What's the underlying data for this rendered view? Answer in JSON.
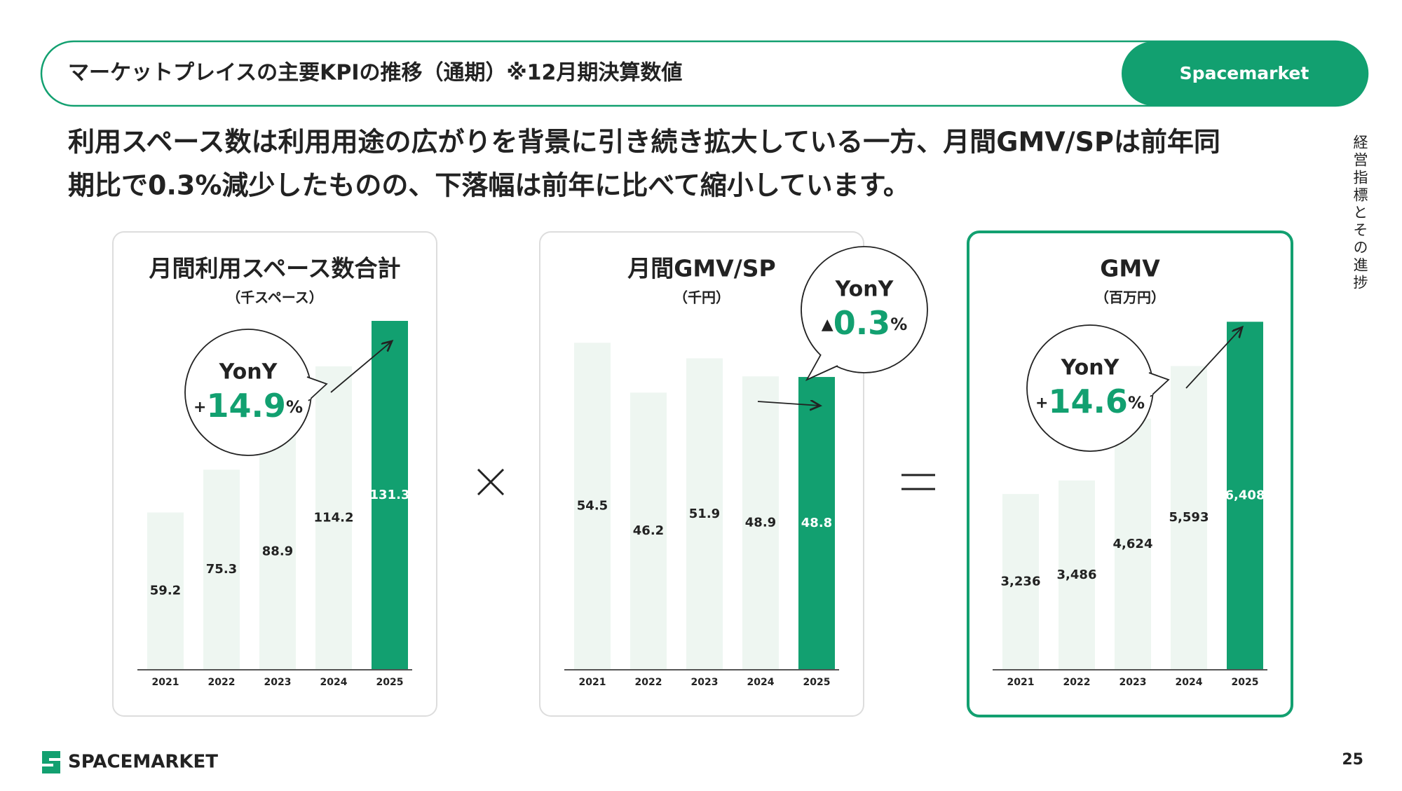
{
  "header": {
    "title": "マーケットプレイスの主要KPIの推移（通期）※12月期決算数値",
    "brand": "Spacemarket"
  },
  "lead": [
    "利用スペース数は利用用途の広がりを背景に引き続き拡大している一方、月間GMV/SPは前年同",
    "期比で0.3%減少したものの、下落幅は前年に比べて縮小しています。"
  ],
  "side_label": "経営指標とその進捗",
  "operators": [
    "×",
    "="
  ],
  "footer": {
    "logo": "SPACEMARKET",
    "page": 25
  },
  "chart_data": [
    {
      "type": "bar",
      "title": "月間利用スペース数合計",
      "unit": "（千スペース）",
      "categories": [
        "2021",
        "2022",
        "2023",
        "2024",
        "2025"
      ],
      "values": [
        59.2,
        75.3,
        88.9,
        114.2,
        131.3
      ],
      "color": "#eef6f1",
      "highlight_color": "#12a070",
      "ylim": [
        0,
        140
      ],
      "yony": {
        "label": "YonY",
        "prefix": "+",
        "value": 14.9,
        "suffix": "%"
      }
    },
    {
      "type": "bar",
      "title": "月間GMV/SP",
      "unit": "（千円）",
      "categories": [
        "2021",
        "2022",
        "2023",
        "2024",
        "2025"
      ],
      "values": [
        54.5,
        46.2,
        51.9,
        48.9,
        48.8
      ],
      "color": "#eef6f1",
      "highlight_color": "#12a070",
      "ylim": [
        0,
        62
      ],
      "yony": {
        "label": "YonY",
        "prefix": "▲",
        "value": 0.3,
        "suffix": "%"
      }
    },
    {
      "type": "bar",
      "title": "GMV",
      "unit": "（百万円）",
      "categories": [
        "2021",
        "2022",
        "2023",
        "2024",
        "2025"
      ],
      "values": [
        3236,
        3486,
        4624,
        5593,
        6408
      ],
      "value_labels": [
        "3,236",
        "3,486",
        "4,624",
        "5,593",
        "6,408"
      ],
      "color": "#eef6f1",
      "highlight_color": "#12a070",
      "ylim": [
        0,
        6850
      ],
      "yony": {
        "label": "YonY",
        "prefix": "+",
        "value": 14.6,
        "suffix": "%"
      }
    }
  ]
}
